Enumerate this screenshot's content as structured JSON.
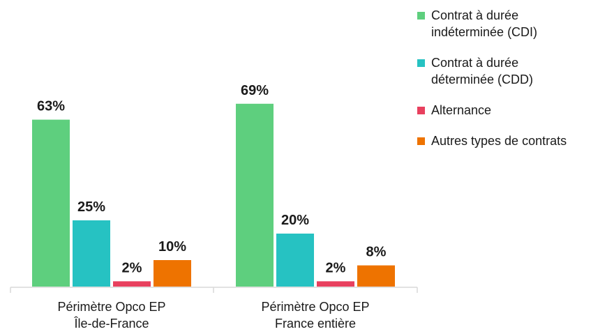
{
  "chart_data": {
    "type": "bar",
    "categories": [
      [
        "Périmètre Opco EP",
        "Île-de-France"
      ],
      [
        "Périmètre Opco EP",
        "France entière"
      ]
    ],
    "series": [
      {
        "name": "Contrat à durée\nindéterminée (CDI)",
        "color": "#5ecf7e",
        "values": [
          63,
          69
        ],
        "labels": [
          "63%",
          "69%"
        ]
      },
      {
        "name": "Contrat à durée\ndéterminée (CDD)",
        "color": "#26c2c2",
        "values": [
          25,
          20
        ],
        "labels": [
          "25%",
          "20%"
        ]
      },
      {
        "name": "Alternance",
        "color": "#e8405e",
        "values": [
          2,
          2
        ],
        "labels": [
          "2%",
          "2%"
        ]
      },
      {
        "name": "Autres types de contrats",
        "color": "#ee7300",
        "values": [
          10,
          8
        ],
        "labels": [
          "10%",
          "8%"
        ]
      }
    ],
    "ylim": [
      0,
      100
    ],
    "grid": false,
    "legend": "right"
  }
}
